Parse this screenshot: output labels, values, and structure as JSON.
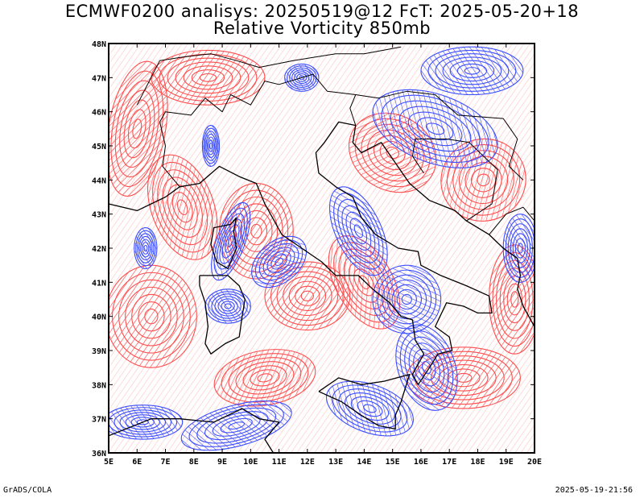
{
  "title": {
    "line1": "ECMWF0200 analisys: 20250519@12 FcT: 2025-05-20+18",
    "line2": "Relative Vorticity 850mb"
  },
  "map": {
    "lon_ticks": [
      "5E",
      "6E",
      "7E",
      "8E",
      "9E",
      "10E",
      "11E",
      "12E",
      "13E",
      "14E",
      "15E",
      "16E",
      "17E",
      "18E",
      "19E",
      "20E"
    ],
    "lat_ticks": [
      "36N",
      "37N",
      "38N",
      "39N",
      "40N",
      "41N",
      "42N",
      "43N",
      "44N",
      "45N",
      "46N",
      "47N",
      "48N"
    ],
    "lon_range": [
      5,
      20
    ],
    "lat_range": [
      36,
      48
    ],
    "colors": {
      "positive": "#ff4d4d",
      "negative": "#3a4dff",
      "coastline": "#000000",
      "background": "#ffffff"
    },
    "fields": [
      {
        "sign": "pos",
        "lon": 7.6,
        "lat": 43.2,
        "rx": 1.1,
        "ry": 1.6,
        "rot": -20
      },
      {
        "sign": "pos",
        "lon": 6.0,
        "lat": 45.5,
        "rx": 1.0,
        "ry": 2.0,
        "rot": 10
      },
      {
        "sign": "pos",
        "lon": 10.2,
        "lat": 42.5,
        "rx": 1.3,
        "ry": 1.4,
        "rot": 0
      },
      {
        "sign": "pos",
        "lon": 12.0,
        "lat": 40.6,
        "rx": 1.5,
        "ry": 1.0,
        "rot": 0
      },
      {
        "sign": "pos",
        "lon": 15.0,
        "lat": 44.8,
        "rx": 1.6,
        "ry": 1.1,
        "rot": 30
      },
      {
        "sign": "pos",
        "lon": 18.2,
        "lat": 44.0,
        "rx": 1.5,
        "ry": 1.2,
        "rot": -20
      },
      {
        "sign": "pos",
        "lon": 17.5,
        "lat": 38.2,
        "rx": 2.0,
        "ry": 0.9,
        "rot": 0
      },
      {
        "sign": "pos",
        "lon": 6.5,
        "lat": 40.0,
        "rx": 1.6,
        "ry": 1.5,
        "rot": 0
      },
      {
        "sign": "pos",
        "lon": 10.5,
        "lat": 38.2,
        "rx": 1.8,
        "ry": 0.8,
        "rot": -10
      },
      {
        "sign": "pos",
        "lon": 14.0,
        "lat": 41.0,
        "rx": 1.0,
        "ry": 1.5,
        "rot": -30
      },
      {
        "sign": "pos",
        "lon": 8.5,
        "lat": 47.0,
        "rx": 2.0,
        "ry": 0.8,
        "rot": 0
      },
      {
        "sign": "pos",
        "lon": 19.3,
        "lat": 40.5,
        "rx": 0.9,
        "ry": 1.6,
        "rot": 0
      },
      {
        "sign": "neg",
        "lon": 16.5,
        "lat": 45.5,
        "rx": 2.3,
        "ry": 1.0,
        "rot": 20
      },
      {
        "sign": "neg",
        "lon": 17.8,
        "lat": 47.2,
        "rx": 1.8,
        "ry": 0.7,
        "rot": 0
      },
      {
        "sign": "neg",
        "lon": 13.8,
        "lat": 42.5,
        "rx": 0.8,
        "ry": 1.4,
        "rot": -25
      },
      {
        "sign": "neg",
        "lon": 15.5,
        "lat": 40.5,
        "rx": 1.2,
        "ry": 1.0,
        "rot": -30
      },
      {
        "sign": "neg",
        "lon": 16.2,
        "lat": 38.5,
        "rx": 1.0,
        "ry": 1.3,
        "rot": -20
      },
      {
        "sign": "neg",
        "lon": 11.0,
        "lat": 41.6,
        "rx": 1.1,
        "ry": 0.6,
        "rot": -40
      },
      {
        "sign": "neg",
        "lon": 9.3,
        "lat": 42.2,
        "rx": 0.5,
        "ry": 1.2,
        "rot": 20
      },
      {
        "sign": "neg",
        "lon": 9.5,
        "lat": 36.8,
        "rx": 2.0,
        "ry": 0.6,
        "rot": -15
      },
      {
        "sign": "neg",
        "lon": 14.2,
        "lat": 37.3,
        "rx": 1.6,
        "ry": 0.7,
        "rot": 20
      },
      {
        "sign": "neg",
        "lon": 6.2,
        "lat": 36.9,
        "rx": 1.4,
        "ry": 0.5,
        "rot": 0
      },
      {
        "sign": "neg",
        "lon": 9.2,
        "lat": 40.3,
        "rx": 0.8,
        "ry": 0.5,
        "rot": 0
      },
      {
        "sign": "neg",
        "lon": 19.5,
        "lat": 42.0,
        "rx": 0.6,
        "ry": 1.0,
        "rot": 0
      },
      {
        "sign": "neg",
        "lon": 6.3,
        "lat": 42.0,
        "rx": 0.4,
        "ry": 0.6,
        "rot": 0
      },
      {
        "sign": "neg",
        "lon": 11.8,
        "lat": 47.0,
        "rx": 0.6,
        "ry": 0.4,
        "rot": 0
      },
      {
        "sign": "neg",
        "lon": 8.6,
        "lat": 45.0,
        "rx": 0.3,
        "ry": 0.6,
        "rot": 0
      }
    ],
    "coastlines": [
      [
        [
          7.5,
          43.8
        ],
        [
          8.2,
          43.9
        ],
        [
          8.9,
          44.4
        ],
        [
          9.6,
          44.1
        ],
        [
          10.2,
          43.9
        ],
        [
          10.5,
          43.3
        ],
        [
          11.1,
          42.4
        ],
        [
          11.8,
          42.0
        ],
        [
          12.5,
          41.6
        ],
        [
          13.0,
          41.2
        ],
        [
          13.8,
          41.2
        ],
        [
          14.3,
          40.8
        ],
        [
          14.9,
          40.4
        ],
        [
          15.3,
          40.0
        ],
        [
          15.7,
          39.9
        ],
        [
          15.8,
          39.3
        ],
        [
          16.1,
          38.9
        ],
        [
          15.7,
          38.3
        ],
        [
          15.9,
          38.0
        ],
        [
          16.3,
          38.5
        ],
        [
          16.6,
          38.9
        ],
        [
          17.1,
          39.0
        ],
        [
          17.0,
          39.4
        ],
        [
          16.5,
          39.7
        ],
        [
          16.9,
          40.4
        ],
        [
          17.5,
          40.3
        ],
        [
          18.0,
          40.1
        ],
        [
          18.5,
          40.1
        ],
        [
          18.4,
          40.6
        ],
        [
          17.6,
          40.9
        ],
        [
          16.7,
          41.2
        ],
        [
          16.0,
          41.5
        ],
        [
          15.9,
          41.9
        ],
        [
          15.2,
          42.0
        ],
        [
          14.4,
          42.4
        ],
        [
          13.9,
          42.9
        ],
        [
          13.6,
          43.5
        ],
        [
          13.0,
          43.8
        ],
        [
          12.4,
          44.2
        ],
        [
          12.3,
          44.8
        ],
        [
          12.6,
          45.1
        ],
        [
          13.1,
          45.7
        ],
        [
          13.7,
          45.6
        ]
      ],
      [
        [
          8.2,
          41.2
        ],
        [
          9.2,
          41.2
        ],
        [
          9.6,
          40.9
        ],
        [
          9.8,
          40.5
        ],
        [
          9.7,
          40.0
        ],
        [
          9.6,
          39.4
        ],
        [
          9.1,
          39.2
        ],
        [
          8.6,
          38.9
        ],
        [
          8.4,
          39.2
        ],
        [
          8.5,
          39.7
        ],
        [
          8.4,
          40.4
        ],
        [
          8.2,
          40.9
        ],
        [
          8.2,
          41.2
        ]
      ],
      [
        [
          9.5,
          42.9
        ],
        [
          9.4,
          42.5
        ],
        [
          9.5,
          42.0
        ],
        [
          9.2,
          41.4
        ],
        [
          8.8,
          41.6
        ],
        [
          8.6,
          42.1
        ],
        [
          8.7,
          42.6
        ],
        [
          9.3,
          42.7
        ],
        [
          9.5,
          42.9
        ]
      ],
      [
        [
          12.4,
          37.8
        ],
        [
          13.1,
          38.2
        ],
        [
          13.9,
          38.0
        ],
        [
          14.7,
          38.1
        ],
        [
          15.6,
          38.3
        ],
        [
          15.3,
          37.5
        ],
        [
          15.1,
          37.1
        ],
        [
          15.1,
          36.7
        ],
        [
          14.5,
          36.8
        ],
        [
          13.9,
          37.1
        ],
        [
          13.2,
          37.5
        ],
        [
          12.4,
          37.8
        ]
      ],
      [
        [
          13.7,
          45.6
        ],
        [
          13.6,
          45.1
        ],
        [
          13.9,
          44.8
        ],
        [
          14.6,
          45.1
        ],
        [
          15.1,
          44.5
        ],
        [
          15.6,
          43.9
        ],
        [
          16.3,
          43.4
        ],
        [
          17.2,
          43.1
        ],
        [
          17.6,
          42.8
        ],
        [
          18.4,
          42.4
        ],
        [
          18.9,
          42.0
        ],
        [
          19.4,
          41.7
        ],
        [
          19.5,
          41.2
        ],
        [
          19.4,
          40.8
        ],
        [
          19.6,
          40.3
        ],
        [
          20.0,
          39.7
        ]
      ],
      [
        [
          5.0,
          43.3
        ],
        [
          6.0,
          43.1
        ],
        [
          7.0,
          43.5
        ],
        [
          7.5,
          43.8
        ]
      ],
      [
        [
          8.7,
          36.9
        ],
        [
          9.7,
          37.3
        ],
        [
          10.3,
          37.0
        ],
        [
          11.0,
          36.9
        ],
        [
          10.5,
          36.4
        ],
        [
          10.8,
          36.0
        ]
      ],
      [
        [
          5.0,
          36.5
        ],
        [
          6.5,
          37.0
        ],
        [
          7.5,
          37.0
        ],
        [
          8.7,
          36.9
        ]
      ]
    ],
    "borders": [
      [
        [
          7.5,
          43.8
        ],
        [
          6.9,
          44.4
        ],
        [
          7.0,
          45.0
        ],
        [
          6.8,
          45.7
        ],
        [
          7.0,
          46.0
        ],
        [
          7.9,
          45.9
        ],
        [
          8.4,
          46.4
        ],
        [
          9.0,
          46.0
        ],
        [
          9.3,
          46.5
        ],
        [
          10.0,
          46.2
        ],
        [
          10.5,
          46.9
        ],
        [
          11.0,
          46.8
        ],
        [
          12.2,
          47.1
        ],
        [
          12.7,
          46.6
        ],
        [
          13.7,
          46.5
        ],
        [
          13.5,
          46.1
        ],
        [
          13.7,
          45.6
        ]
      ],
      [
        [
          6.0,
          46.2
        ],
        [
          6.8,
          47.5
        ],
        [
          7.6,
          47.6
        ],
        [
          8.6,
          47.7
        ],
        [
          9.5,
          47.5
        ],
        [
          10.3,
          47.3
        ],
        [
          11.5,
          47.5
        ],
        [
          13.0,
          47.7
        ],
        [
          14.0,
          47.7
        ],
        [
          15.3,
          47.9
        ]
      ],
      [
        [
          13.7,
          46.5
        ],
        [
          14.5,
          46.4
        ],
        [
          15.5,
          46.6
        ],
        [
          16.5,
          46.5
        ],
        [
          17.3,
          45.9
        ],
        [
          18.9,
          45.8
        ],
        [
          19.4,
          45.2
        ],
        [
          19.1,
          44.4
        ],
        [
          19.6,
          44.0
        ]
      ],
      [
        [
          17.6,
          42.8
        ],
        [
          18.5,
          43.3
        ],
        [
          18.7,
          44.3
        ],
        [
          17.7,
          45.1
        ],
        [
          16.9,
          45.2
        ],
        [
          15.8,
          45.2
        ],
        [
          15.7,
          44.7
        ],
        [
          16.1,
          44.2
        ]
      ],
      [
        [
          18.4,
          42.4
        ],
        [
          19.0,
          43.0
        ],
        [
          19.6,
          43.2
        ],
        [
          20.0,
          42.8
        ]
      ]
    ]
  },
  "footer": {
    "left": "GrADS/COLA",
    "right": "2025-05-19-21:56"
  }
}
